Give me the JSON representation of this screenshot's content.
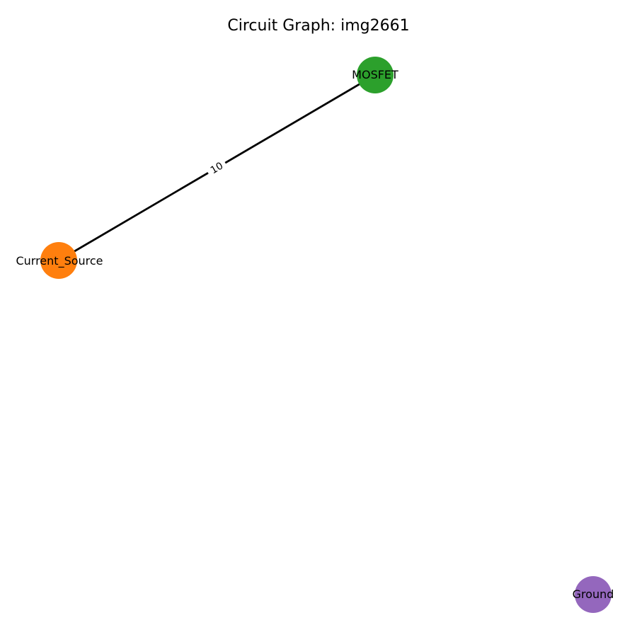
{
  "title": "Circuit Graph: img2661",
  "nodes": [
    {
      "id": "mosfet",
      "label": "MOSFET",
      "color": "#2ca02c"
    },
    {
      "id": "current_source",
      "label": "Current_Source",
      "color": "#ff7f0e"
    },
    {
      "id": "ground",
      "label": "Ground",
      "color": "#9467bd"
    }
  ],
  "edges": [
    {
      "from": "current_source",
      "to": "mosfet",
      "label": "10"
    }
  ],
  "edge_color": "#000000"
}
